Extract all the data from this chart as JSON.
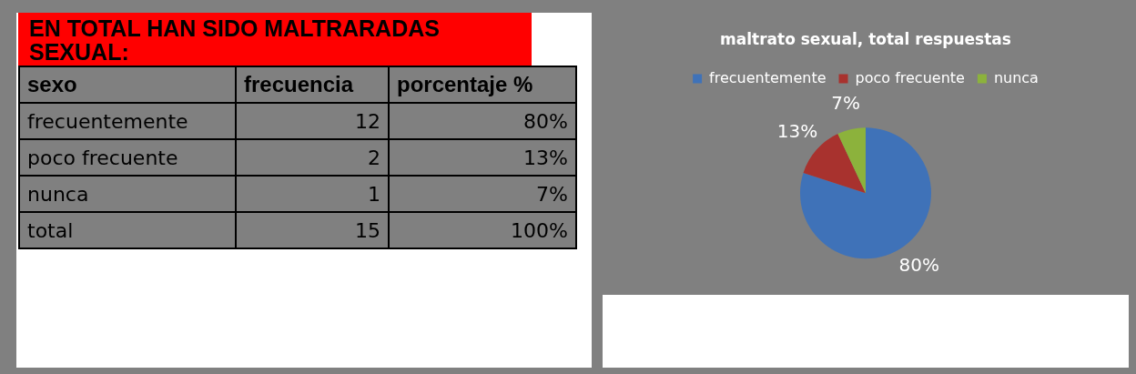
{
  "chart_data": [
    {
      "type": "other",
      "title": "EN TOTAL HAN SIDO MALTRARADAS SEXUAL:",
      "xlabel": "sexo",
      "categories": [
        "frecuentemente",
        "poco frecuente",
        "nunca",
        "total"
      ],
      "series": [
        {
          "name": "frecuencia",
          "color": "#808080",
          "values": [
            12,
            2,
            1,
            15
          ]
        },
        {
          "name": "porcentaje %",
          "color": "#808080",
          "values": [
            80,
            13,
            7,
            100
          ],
          "value_labels": [
            "80%",
            "13%",
            "7%",
            "100%"
          ]
        }
      ],
      "data_labels": true
    },
    {
      "type": "pie",
      "title": "maltrato sexual, total respuestas",
      "categories": [
        "frecuentemente",
        "poco frecuente",
        "nunca"
      ],
      "values": [
        80,
        13,
        7
      ],
      "colors": [
        "#3f72b8",
        "#a8322e",
        "#8cb23c"
      ],
      "value_labels": [
        "80%",
        "13%",
        "7%"
      ],
      "legend": "top"
    }
  ]
}
